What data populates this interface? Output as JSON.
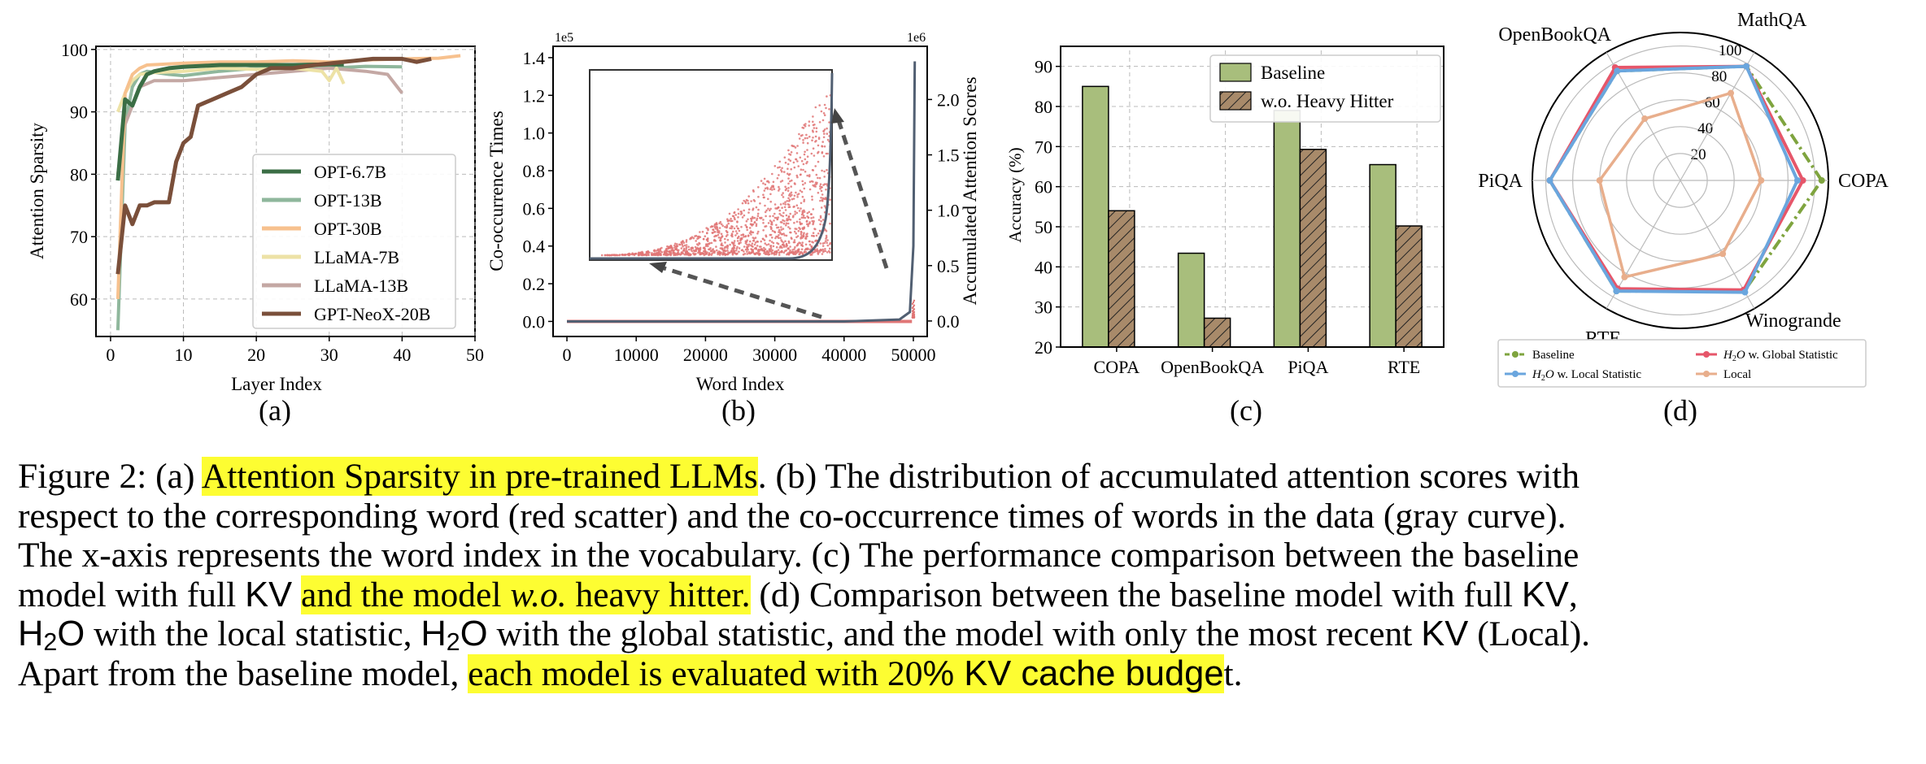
{
  "colors": {
    "opt67": "#3b6e45",
    "opt13": "#8fb79c",
    "opt30": "#f7c18e",
    "llama7": "#ede2a6",
    "llama13": "#c4a8a4",
    "neox": "#7a4f3a",
    "scatter": "#e07676",
    "curve": "#515f72",
    "bar_baseline": "#a8be7c",
    "bar_hh": "#a88a6a",
    "radar_baseline": "#7fa43f",
    "radar_local_stat": "#6aa6de",
    "radar_global_stat": "#e6566a",
    "radar_local": "#e8ae8c",
    "highlight": "#fdfd32"
  },
  "panels": {
    "a": {
      "label": "(a)",
      "chart_data": {
        "type": "line",
        "xlabel": "Layer Index",
        "ylabel": "Attention Sparsity",
        "xlim": [
          -2,
          50
        ],
        "ylim": [
          54,
          100.5
        ],
        "xticks": [
          "0",
          "10",
          "20",
          "30",
          "40",
          "50"
        ],
        "xtick_values": [
          0,
          10,
          20,
          30,
          40,
          50
        ],
        "yticks": [
          "60",
          "70",
          "80",
          "90",
          "100"
        ],
        "ytick_values": [
          60,
          70,
          80,
          90,
          100
        ],
        "grid": true,
        "legend": "lower-right",
        "series": [
          {
            "name": "OPT-6.7B",
            "color_key": "opt67",
            "x": [
              1,
              2,
              3,
              4,
              5,
              6,
              8,
              10,
              15,
              20,
              25,
              30,
              32
            ],
            "y": [
              79,
              92,
              91,
              94,
              96,
              96.5,
              97,
              97.2,
              97.5,
              97.5,
              97.5,
              97.6,
              97.6
            ]
          },
          {
            "name": "OPT-13B",
            "color_key": "opt13",
            "x": [
              1,
              2,
              3,
              4,
              5,
              8,
              10,
              15,
              20,
              25,
              30,
              35,
              40
            ],
            "y": [
              55,
              88,
              94,
              96,
              96.5,
              96,
              95.8,
              96.5,
              97,
              97.2,
              97,
              97.3,
              97.2
            ]
          },
          {
            "name": "OPT-30B",
            "color_key": "opt30",
            "x": [
              1,
              2,
              3,
              4,
              5,
              10,
              15,
              20,
              25,
              30,
              35,
              40,
              45,
              48
            ],
            "y": [
              60,
              93,
              96,
              97,
              97.5,
              97.8,
              98,
              98,
              98.2,
              98,
              98.3,
              98.5,
              98.6,
              99
            ]
          },
          {
            "name": "LLaMA-7B",
            "color_key": "llama7",
            "x": [
              1,
              2,
              3,
              4,
              6,
              10,
              15,
              20,
              25,
              29,
              30,
              31,
              32
            ],
            "y": [
              90,
              93,
              95,
              96,
              96.3,
              96.5,
              97,
              96.8,
              97,
              96.5,
              95,
              97,
              94.5
            ]
          },
          {
            "name": "LLaMA-13B",
            "color_key": "llama13",
            "x": [
              1,
              2,
              3,
              4,
              6,
              10,
              15,
              20,
              25,
              30,
              35,
              38,
              40
            ],
            "y": [
              80,
              88,
              91,
              94,
              95,
              95,
              95.5,
              96,
              96.5,
              97,
              96.5,
              96,
              93
            ]
          },
          {
            "name": "GPT-NeoX-20B",
            "color_key": "neox",
            "x": [
              1,
              2,
              3,
              4,
              5,
              6,
              7,
              8,
              9,
              10,
              11,
              12,
              14,
              16,
              18,
              20,
              22,
              25,
              28,
              32,
              36,
              40,
              42,
              44
            ],
            "y": [
              64,
              75,
              72,
              75,
              75,
              75.5,
              75.5,
              75.5,
              82,
              85,
              86,
              91,
              92,
              93,
              94,
              96,
              97,
              97,
              97.5,
              98,
              98.5,
              98.5,
              98,
              98.5
            ]
          }
        ]
      }
    },
    "b": {
      "label": "(b)",
      "chart_data": {
        "type": "scatter",
        "xlabel": "Word Index",
        "ylabel": "Co-occurrence Times",
        "ylabel_right": "Accumulated Attention Scores",
        "xlim": [
          -2000,
          52000
        ],
        "ylim": [
          -0.08,
          1.46
        ],
        "ylim_right": [
          -0.14,
          2.48
        ],
        "xticks": [
          "0",
          "10000",
          "20000",
          "30000",
          "40000",
          "50000"
        ],
        "xtick_values": [
          0,
          10000,
          20000,
          30000,
          40000,
          50000
        ],
        "yticks": [
          "0.0",
          "0.2",
          "0.4",
          "0.6",
          "0.8",
          "1.0",
          "1.2",
          "1.4"
        ],
        "ytick_values": [
          0,
          0.2,
          0.4,
          0.6,
          0.8,
          1.0,
          1.2,
          1.4
        ],
        "yticks_right": [
          "0.0",
          "0.5",
          "1.0",
          "1.5",
          "2.0"
        ],
        "ytick_values_right": [
          0,
          0.5,
          1.0,
          1.5,
          2.0
        ],
        "exp_left": "1e5",
        "exp_right": "1e6",
        "series": [
          {
            "name": "",
            "color_key": "scatter",
            "description": "accumulated attention scores, flat near 0, rising near x=50000"
          },
          {
            "name": "",
            "color_key": "curve",
            "x": [
              0,
              10000,
              20000,
              30000,
              40000,
              48000,
              49500,
              50000,
              50200
            ],
            "y": [
              0,
              0,
              0,
              0,
              0,
              0.01,
              0.05,
              0.4,
              1.38
            ]
          }
        ]
      }
    },
    "c": {
      "label": "(c)",
      "chart_data": {
        "type": "bar",
        "ylabel": "Accuracy (%)",
        "ylim": [
          20,
          95
        ],
        "yticks": [
          "20",
          "30",
          "40",
          "50",
          "60",
          "70",
          "80",
          "90"
        ],
        "ytick_values": [
          20,
          30,
          40,
          50,
          60,
          70,
          80,
          90
        ],
        "categories": [
          "COPA",
          "OpenBookQA",
          "PiQA",
          "RTE"
        ],
        "grid": true,
        "legend": "top-right",
        "series": [
          {
            "name": "Baseline",
            "color_key": "bar_baseline",
            "values": [
              85,
              43.4,
              79,
              65.5
            ]
          },
          {
            "name": "w.o. Heavy Hitter",
            "color_key": "bar_hh",
            "values": [
              54,
              27.2,
              69.3,
              50.2
            ]
          }
        ]
      }
    },
    "d": {
      "label": "(d)",
      "chart_data": {
        "type": "radar",
        "axes": [
          "COPA",
          "MathQA",
          "OpenBookQA",
          "PiQA",
          "RTE",
          "Winogrande"
        ],
        "rticks": [
          "20",
          "40",
          "60",
          "80",
          "100"
        ],
        "rtick_values": [
          20,
          40,
          60,
          80,
          100
        ],
        "rmax": 110,
        "legend": "bottom",
        "series": [
          {
            "name": "Baseline",
            "color_key": "radar_baseline",
            "values": [
              105,
              98,
              94,
              97,
              95,
              95
            ]
          },
          {
            "name": "H2O w. Global Statistic",
            "color_key": "radar_global_stat",
            "values": [
              91,
              98,
              97,
              97,
              93,
              94
            ]
          },
          {
            "name": "H2O w. Local Statistic",
            "color_key": "radar_local_stat",
            "values": [
              87,
              98,
              94,
              97,
              95,
              96
            ]
          },
          {
            "name": "Local",
            "color_key": "radar_local",
            "values": [
              60,
              75,
              53,
              60,
              83,
              63
            ]
          }
        ],
        "legend_labels": {
          "baseline": "Baseline",
          "global_h": "H",
          "global_sub": "2",
          "global_o": "O",
          "global_rest": " w. Global Statistic",
          "local_h": "H",
          "local_sub": "2",
          "local_o": "O",
          "local_rest": " w. Local Statistic",
          "local": "Local"
        }
      }
    }
  },
  "caption": {
    "l1a": "Figure 2: (a) ",
    "l1b": "Attention Sparsity in pre-trained LLMs",
    "l1c": ". (b) The distribution of accumulated attention scores with",
    "l2": "respect to the corresponding word (red scatter) and the co-occurrence times of words in the data (gray curve).",
    "l3": "The x-axis represents the word index in the vocabulary. (c) The performance comparison between the baseline",
    "l4a": "model with full ",
    "l4b": "KV",
    "l4c": " ",
    "l4d": "and the model ",
    "l4e": "w.o.",
    "l4f": " heavy hitter.",
    "l4g": " (d) Comparison between the baseline model with full ",
    "l4h": "KV",
    "l4i": ",",
    "l5a": "H",
    "l5b": "2",
    "l5c": "O",
    "l5d": " with the local statistic, ",
    "l5e": "H",
    "l5f": "2",
    "l5g": "O",
    "l5h": " with the global statistic, and the model with only the most recent ",
    "l5i": "KV",
    "l5j": " (Local).",
    "l6a": "Apart from the baseline model, ",
    "l6b": "each model is evaluated with 20",
    "l6c": "% KV cache budge",
    "l6d": "t."
  }
}
